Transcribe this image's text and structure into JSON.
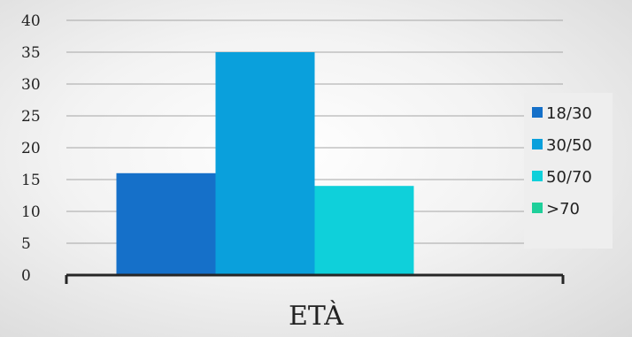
{
  "chart_data": {
    "type": "bar",
    "categories": [
      ""
    ],
    "series": [
      {
        "name": "18/30",
        "values": [
          16
        ],
        "color": "#1570c9"
      },
      {
        "name": "30/50",
        "values": [
          35
        ],
        "color": "#0aa0dc"
      },
      {
        "name": "50/70",
        "values": [
          14
        ],
        "color": "#0fd0da"
      },
      {
        "name": ">70",
        "values": [
          0
        ],
        "color": "#1fcf9a"
      }
    ],
    "title": "",
    "xlabel": "ETÀ",
    "ylabel": "",
    "ylim": [
      0,
      40
    ],
    "yticks": [
      0,
      5,
      10,
      15,
      20,
      25,
      30,
      35,
      40
    ],
    "grid": true,
    "legend_position": "right"
  }
}
